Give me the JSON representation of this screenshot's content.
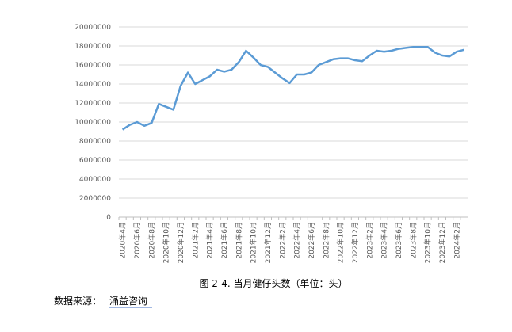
{
  "chart_data": {
    "type": "line",
    "categories": [
      "2020年4月",
      null,
      "2020年6月",
      null,
      "2020年8月",
      null,
      "2020年10月",
      null,
      "2020年12月",
      null,
      "2021年2月",
      null,
      "2021年4月",
      null,
      "2021年6月",
      null,
      "2021年8月",
      null,
      "2021年10月",
      null,
      "2021年12月",
      null,
      "2022年2月",
      null,
      "2022年4月",
      null,
      "2022年6月",
      null,
      "2022年8月",
      null,
      "2022年10月",
      null,
      "2022年12月",
      null,
      "2023年2月",
      null,
      "2023年4月",
      null,
      "2023年6月",
      null,
      "2023年8月",
      null,
      "2023年10月",
      null,
      "2023年12月",
      null,
      "2024年2月",
      null
    ],
    "values": [
      9200000,
      9700000,
      10000000,
      9600000,
      9900000,
      11900000,
      11600000,
      11300000,
      13800000,
      15200000,
      14000000,
      14400000,
      14800000,
      15500000,
      15300000,
      15500000,
      16300000,
      17500000,
      16800000,
      16000000,
      15800000,
      15200000,
      14600000,
      14100000,
      15000000,
      15000000,
      15200000,
      16000000,
      16300000,
      16600000,
      16700000,
      16700000,
      16500000,
      16400000,
      17000000,
      17500000,
      17400000,
      17500000,
      17700000,
      17800000,
      17900000,
      17900000,
      17900000,
      17300000,
      17000000,
      16900000,
      17400000,
      17600000
    ],
    "color": "#5b9bd5",
    "ylim": [
      0,
      20000000
    ],
    "yticks": [
      0,
      2000000,
      4000000,
      6000000,
      8000000,
      10000000,
      12000000,
      14000000,
      16000000,
      18000000,
      20000000
    ],
    "grid": true
  },
  "caption": "图 2-4.  当月健仔头数（单位：头）",
  "source_label": "数据来源：",
  "source_name": "涌益咨询"
}
